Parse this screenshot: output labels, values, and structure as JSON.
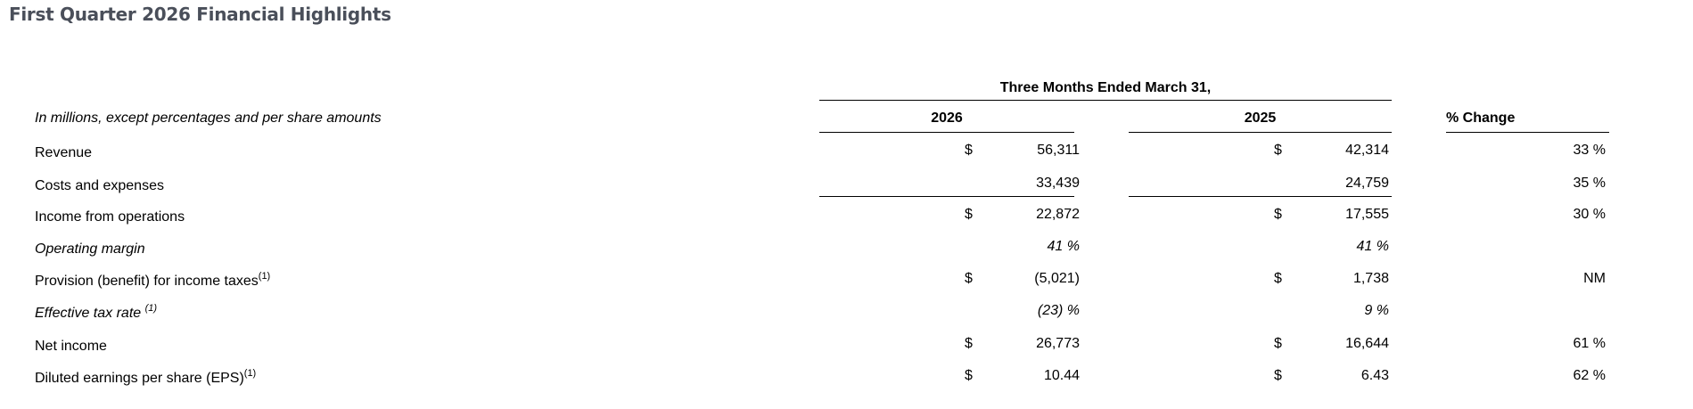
{
  "title": "First Quarter 2026 Financial Highlights",
  "table": {
    "period_header": "Three Months Ended March 31,",
    "units_note": "In millions, except percentages and per share amounts",
    "columns": [
      "2026",
      "2025",
      "% Change"
    ],
    "rows": [
      {
        "label": "Revenue",
        "note": "",
        "d26": "$",
        "v26": "56,311",
        "d25": "$",
        "v25": "42,314",
        "pct": "33 %"
      },
      {
        "label": "Costs and expenses",
        "note": "",
        "d26": "",
        "v26": "33,439",
        "d25": "",
        "v25": "24,759",
        "pct": "35 %"
      },
      {
        "label": "Income from operations",
        "note": "",
        "d26": "$",
        "v26": "22,872",
        "d25": "$",
        "v25": "17,555",
        "pct": "30 %"
      },
      {
        "label": "Operating margin",
        "note": "",
        "d26": "",
        "v26": "41 %",
        "d25": "",
        "v25": "41 %",
        "pct": ""
      },
      {
        "label": "Provision (benefit) for income taxes",
        "note": "(1)",
        "d26": "$",
        "v26": "(5,021)",
        "d25": "$",
        "v25": "1,738",
        "pct": "NM"
      },
      {
        "label": "Effective tax rate ",
        "note": "(1)",
        "d26": "",
        "v26": "(23) %",
        "d25": "",
        "v25": "9 %",
        "pct": ""
      },
      {
        "label": "Net income",
        "note": "",
        "d26": "$",
        "v26": "26,773",
        "d25": "$",
        "v25": "16,644",
        "pct": "61 %"
      },
      {
        "label": "Diluted earnings per share (EPS)",
        "note": "(1)",
        "d26": "$",
        "v26": "10.44",
        "d25": "$",
        "v25": "6.43",
        "pct": "62 %"
      }
    ]
  }
}
